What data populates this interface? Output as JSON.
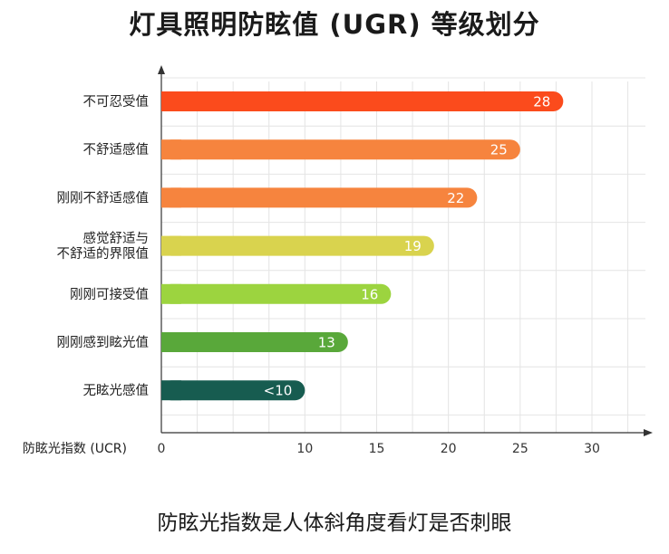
{
  "title": "灯具照明防眩值 (UGR) 等级划分",
  "caption": "防眩光指数是人体斜角度看灯是否刺眼",
  "chart_data": {
    "type": "bar",
    "orientation": "horizontal",
    "title": "灯具照明防眩值 (UGR) 等级划分",
    "xlabel": "防眩光指数 (UCR)",
    "ylabel": "",
    "xlim": [
      0,
      30
    ],
    "xticks": [
      0,
      10,
      15,
      20,
      25,
      30
    ],
    "grid": true,
    "categories": [
      [
        "不可忍受值"
      ],
      [
        "不舒适感值"
      ],
      [
        "刚刚不舒适感值"
      ],
      [
        "感觉舒适与",
        "不舒适的界限值"
      ],
      [
        "刚刚可接受值"
      ],
      [
        "刚刚感到眩光值"
      ],
      [
        "无眩光感值"
      ]
    ],
    "values": [
      28,
      25,
      22,
      19,
      16,
      13,
      10
    ],
    "value_labels": [
      "28",
      "25",
      "22",
      "19",
      "16",
      "13",
      "<10"
    ],
    "colors": [
      "#fb4b1c",
      "#f6843e",
      "#f6843e",
      "#d9d34e",
      "#9cd43f",
      "#59a83a",
      "#175c50"
    ]
  }
}
